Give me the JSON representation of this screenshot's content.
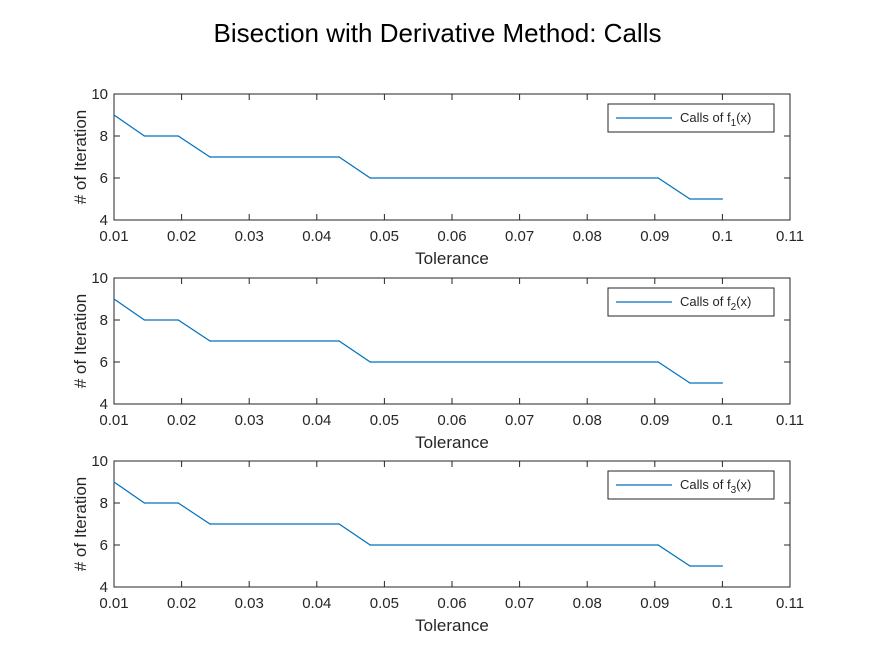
{
  "figure": {
    "title": "Bisection with Derivative Method: Calls",
    "line_color": "#0072BD"
  },
  "chart_data": [
    {
      "type": "line",
      "xlabel": "Tolerance",
      "ylabel": "# of Iteration",
      "xlim": [
        0.01,
        0.11
      ],
      "ylim": [
        4,
        10
      ],
      "xticks": [
        "0.01",
        "0.02",
        "0.03",
        "0.04",
        "0.05",
        "0.06",
        "0.07",
        "0.08",
        "0.09",
        "0.1",
        "0.11"
      ],
      "yticks": [
        "4",
        "6",
        "8",
        "10"
      ],
      "grid": false,
      "legend_position": "top-right",
      "series": [
        {
          "name": "Calls of f",
          "name_subscript": "1",
          "name_suffix": "(x)",
          "x": [
            0.01,
            0.0145,
            0.0195,
            0.0242,
            0.0433,
            0.0479,
            0.0905,
            0.0952,
            0.1
          ],
          "y": [
            9,
            8,
            8,
            7,
            7,
            6,
            6,
            5,
            5
          ]
        }
      ]
    },
    {
      "type": "line",
      "xlabel": "Tolerance",
      "ylabel": "# of Iteration",
      "xlim": [
        0.01,
        0.11
      ],
      "ylim": [
        4,
        10
      ],
      "xticks": [
        "0.01",
        "0.02",
        "0.03",
        "0.04",
        "0.05",
        "0.06",
        "0.07",
        "0.08",
        "0.09",
        "0.1",
        "0.11"
      ],
      "yticks": [
        "4",
        "6",
        "8",
        "10"
      ],
      "grid": false,
      "legend_position": "top-right",
      "series": [
        {
          "name": "Calls of f",
          "name_subscript": "2",
          "name_suffix": "(x)",
          "x": [
            0.01,
            0.0145,
            0.0195,
            0.0242,
            0.0433,
            0.0479,
            0.0905,
            0.0952,
            0.1
          ],
          "y": [
            9,
            8,
            8,
            7,
            7,
            6,
            6,
            5,
            5
          ]
        }
      ]
    },
    {
      "type": "line",
      "xlabel": "Tolerance",
      "ylabel": "# of Iteration",
      "xlim": [
        0.01,
        0.11
      ],
      "ylim": [
        4,
        10
      ],
      "xticks": [
        "0.01",
        "0.02",
        "0.03",
        "0.04",
        "0.05",
        "0.06",
        "0.07",
        "0.08",
        "0.09",
        "0.1",
        "0.11"
      ],
      "yticks": [
        "4",
        "6",
        "8",
        "10"
      ],
      "grid": false,
      "legend_position": "top-right",
      "series": [
        {
          "name": "Calls of f",
          "name_subscript": "3",
          "name_suffix": "(x)",
          "x": [
            0.01,
            0.0145,
            0.0195,
            0.0242,
            0.0433,
            0.0479,
            0.0905,
            0.0952,
            0.1
          ],
          "y": [
            9,
            8,
            8,
            7,
            7,
            6,
            6,
            5,
            5
          ]
        }
      ]
    }
  ]
}
